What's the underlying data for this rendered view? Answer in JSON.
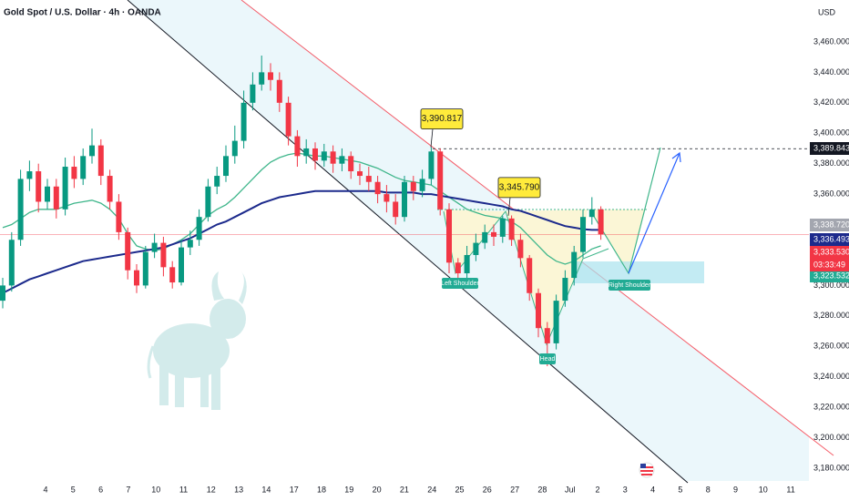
{
  "chart_data": {
    "type": "candlestick",
    "title": "Gold Spot / U.S. Dollar · 4h · OANDA",
    "currency": "USD",
    "x_axis_labels": [
      "4",
      "5",
      "6",
      "7",
      "10",
      "11",
      "12",
      "13",
      "14",
      "17",
      "18",
      "19",
      "20",
      "21",
      "24",
      "25",
      "26",
      "27",
      "28",
      "Jul",
      "2",
      "3",
      "4",
      "5",
      "8",
      "9",
      "10",
      "11"
    ],
    "up_color": "#089981",
    "down_color": "#f23645",
    "open": [
      3290,
      3300,
      3330,
      3370,
      3375,
      3355,
      3365,
      3350,
      3378,
      3370,
      3385,
      3392,
      3372,
      3355,
      3335,
      3310,
      3300,
      3322,
      3328,
      3312,
      3302,
      3325,
      3330,
      3345,
      3365,
      3372,
      3385,
      3395,
      3420,
      3432,
      3440,
      3435,
      3420,
      3398,
      3385,
      3390,
      3382,
      3388,
      3380,
      3385,
      3375,
      3372,
      3368,
      3360,
      3355,
      3345,
      3368,
      3362,
      3370,
      3388,
      3350,
      3315,
      3308,
      3320,
      3328,
      3335,
      3332,
      3344,
      3330,
      3318,
      3295,
      3272,
      3262,
      3290,
      3305,
      3322,
      3345,
      3350
    ],
    "high": [
      3305,
      3335,
      3376,
      3382,
      3380,
      3370,
      3370,
      3384,
      3385,
      3390,
      3403,
      3396,
      3376,
      3360,
      3338,
      3314,
      3326,
      3334,
      3332,
      3316,
      3330,
      3336,
      3350,
      3370,
      3378,
      3392,
      3405,
      3428,
      3440,
      3451,
      3446,
      3440,
      3424,
      3402,
      3396,
      3394,
      3393,
      3392,
      3390,
      3388,
      3380,
      3378,
      3372,
      3366,
      3360,
      3372,
      3372,
      3376,
      3390.817,
      3390,
      3354,
      3318,
      3326,
      3334,
      3340,
      3340,
      3345.79,
      3346,
      3334,
      3320,
      3298,
      3276,
      3294,
      3310,
      3326,
      3350,
      3358,
      3352
    ],
    "low": [
      3285,
      3296,
      3326,
      3362,
      3348,
      3350,
      3344,
      3346,
      3364,
      3366,
      3380,
      3366,
      3350,
      3330,
      3304,
      3295,
      3298,
      3318,
      3306,
      3298,
      3300,
      3320,
      3326,
      3342,
      3360,
      3368,
      3380,
      3390,
      3415,
      3428,
      3428,
      3414,
      3392,
      3378,
      3380,
      3376,
      3378,
      3374,
      3375,
      3370,
      3366,
      3362,
      3354,
      3348,
      3340,
      3342,
      3356,
      3358,
      3366,
      3346,
      3308,
      3302,
      3304,
      3316,
      3324,
      3326,
      3328,
      3326,
      3312,
      3290,
      3266,
      3247,
      3258,
      3286,
      3300,
      3318,
      3340,
      3330
    ],
    "close": [
      3300,
      3330,
      3370,
      3375,
      3355,
      3365,
      3350,
      3378,
      3370,
      3385,
      3392,
      3372,
      3355,
      3335,
      3310,
      3300,
      3322,
      3328,
      3312,
      3302,
      3325,
      3330,
      3345,
      3365,
      3372,
      3385,
      3395,
      3420,
      3432,
      3440,
      3435,
      3420,
      3398,
      3385,
      3390,
      3382,
      3388,
      3380,
      3385,
      3375,
      3372,
      3368,
      3360,
      3355,
      3345,
      3368,
      3362,
      3370,
      3388,
      3350,
      3315,
      3308,
      3320,
      3328,
      3335,
      3332,
      3344,
      3330,
      3318,
      3295,
      3272,
      3262,
      3290,
      3305,
      3322,
      3345,
      3350,
      3333.53
    ],
    "moving_averages": [
      {
        "color": "#3fb68b",
        "values": [
          3338,
          3340,
          3344,
          3348,
          3350,
          3350,
          3350,
          3352,
          3354,
          3355,
          3356,
          3354,
          3350,
          3344,
          3334,
          3326,
          3324,
          3323,
          3324,
          3327,
          3330,
          3334,
          3340,
          3346,
          3350,
          3353,
          3358,
          3364,
          3370,
          3376,
          3381,
          3384,
          3386,
          3387,
          3386,
          3385,
          3385,
          3384,
          3383,
          3382,
          3381,
          3379,
          3377,
          3374,
          3371,
          3369,
          3368,
          3367,
          3366,
          3362,
          3358,
          3354,
          3350,
          3348,
          3346,
          3345,
          3344,
          3342,
          3338,
          3332,
          3326,
          3320,
          3316,
          3314,
          3316,
          3320,
          3324,
          3326
        ]
      },
      {
        "color": "#1c2a8c",
        "values": [
          3295,
          3298,
          3301,
          3304,
          3306,
          3308,
          3310,
          3312,
          3314,
          3316,
          3317,
          3318,
          3319,
          3320,
          3321,
          3322,
          3323,
          3324,
          3325,
          3327,
          3329,
          3331,
          3334,
          3337,
          3340,
          3342,
          3345,
          3348,
          3351,
          3354,
          3356,
          3358,
          3359,
          3360,
          3361,
          3362,
          3362,
          3362,
          3362,
          3362,
          3362,
          3362,
          3362,
          3361,
          3361,
          3361,
          3361,
          3360,
          3360,
          3359,
          3358,
          3357,
          3356,
          3355,
          3354,
          3353,
          3352,
          3350,
          3349,
          3347,
          3345,
          3343,
          3341,
          3339,
          3338,
          3337,
          3336.5,
          3336.493
        ]
      }
    ],
    "ylim": [
      3173.4,
      3487.5
    ],
    "yticks": [
      {
        "value": 3180,
        "label": "3,180.000"
      },
      {
        "value": 3200,
        "label": "3,200.000"
      },
      {
        "value": 3220,
        "label": "3,220.000"
      },
      {
        "value": 3240,
        "label": "3,240.000"
      },
      {
        "value": 3260,
        "label": "3,260.000"
      },
      {
        "value": 3280,
        "label": "3,280.000"
      },
      {
        "value": 3300,
        "label": "3,300.000"
      },
      {
        "value": 3320,
        "label": "3,320.000"
      },
      {
        "value": 3340,
        "label": "3,340.000"
      },
      {
        "value": 3360,
        "label": "3,360.000"
      },
      {
        "value": 3380,
        "label": "3,380.000"
      },
      {
        "value": 3400,
        "label": "3,400.000"
      },
      {
        "value": 3420,
        "label": "3,420.000"
      },
      {
        "value": 3440,
        "label": "3,440.000"
      },
      {
        "value": 3460,
        "label": "3,460.000"
      }
    ],
    "price_labels": [
      {
        "value": 3389.843,
        "label": "3,389.843",
        "color": "#131722"
      },
      {
        "value": 3338.72,
        "label": "3,338.720",
        "color": "#a3a6af"
      },
      {
        "value": 3336.493,
        "label": "3,336.493",
        "color": "#1c2a8c"
      },
      {
        "value": 3333.53,
        "label": "3,333.530",
        "color": "#f23645"
      },
      {
        "value": 3323.532,
        "label": "3,323.532",
        "color": "#22ab94"
      }
    ],
    "countdown": "03:33:49",
    "peak_labels": [
      {
        "value": 3390.817,
        "label": "3,390.817"
      },
      {
        "value": 3345.79,
        "label": "3,345.790"
      }
    ],
    "pattern_labels": [
      "Left Shoulder",
      "Head",
      "Right Shoulder"
    ]
  }
}
